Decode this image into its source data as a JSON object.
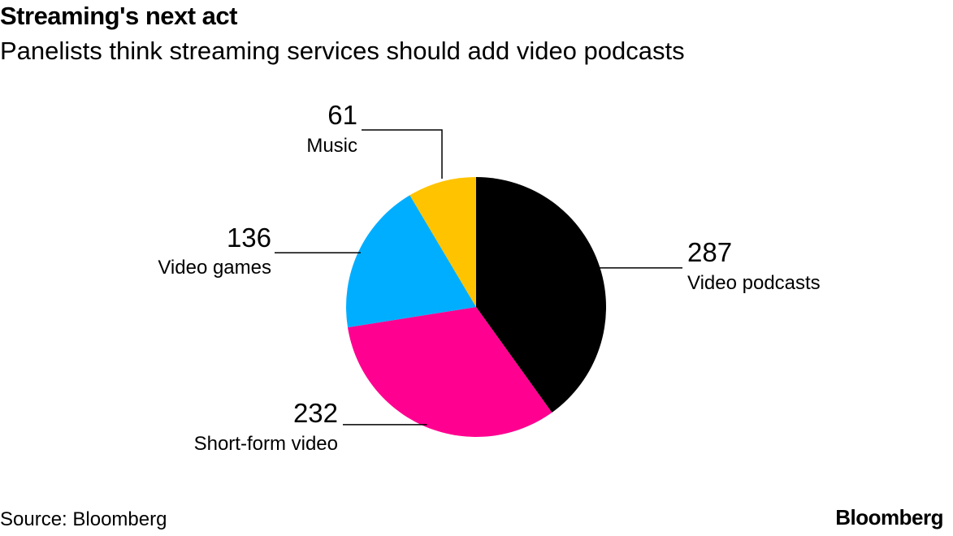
{
  "header": {
    "title": "Streaming's next act",
    "subtitle": "Panelists think streaming services should add video podcasts"
  },
  "chart_data": {
    "type": "pie",
    "title": "Streaming's next act",
    "subtitle": "Panelists think streaming services should add video podcasts",
    "slices": [
      {
        "label": "Video podcasts",
        "value": 287,
        "color": "#000000"
      },
      {
        "label": "Short-form video",
        "value": 232,
        "color": "#ff0090"
      },
      {
        "label": "Video games",
        "value": 136,
        "color": "#00aeff"
      },
      {
        "label": "Music",
        "value": 61,
        "color": "#ffc300"
      }
    ]
  },
  "footer": {
    "source": "Source: Bloomberg",
    "brand": "Bloomberg"
  }
}
